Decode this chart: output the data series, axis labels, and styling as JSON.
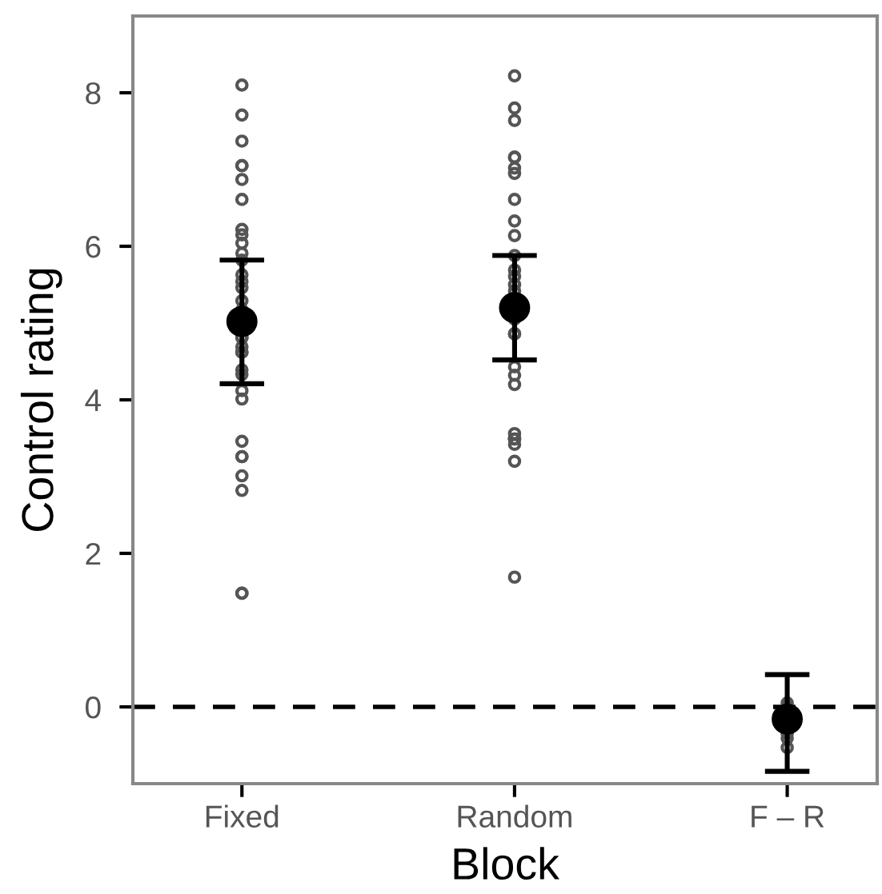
{
  "chart_data": {
    "type": "scatter",
    "xlabel": "Block",
    "ylabel": "Control rating",
    "categories": [
      "Fixed",
      "Random",
      "F – R"
    ],
    "ylim": [
      -1,
      9
    ],
    "yticks": [
      0,
      2,
      4,
      6,
      8
    ],
    "grid": false,
    "legend": false,
    "marker": "circle",
    "ref_lines": [
      {
        "axis": "y",
        "value": 0,
        "line_style": "dashed",
        "color": "#000000"
      }
    ],
    "series": [
      {
        "color": "#555555",
        "x": [
          "Fixed",
          "Fixed",
          "Fixed",
          "Fixed",
          "Fixed",
          "Fixed",
          "Fixed",
          "Fixed",
          "Fixed",
          "Fixed",
          "Fixed",
          "Fixed",
          "Fixed",
          "Fixed",
          "Fixed",
          "Fixed",
          "Fixed",
          "Fixed",
          "Fixed",
          "Fixed",
          "Fixed",
          "Fixed",
          "Fixed",
          "Fixed",
          "Fixed",
          "Fixed",
          "Fixed",
          "Fixed",
          "Fixed",
          "Fixed",
          "Fixed",
          "Fixed",
          "Fixed",
          "Random",
          "Random",
          "Random",
          "Random",
          "Random",
          "Random",
          "Random",
          "Random",
          "Random",
          "Random",
          "Random",
          "Random",
          "Random",
          "Random",
          "Random",
          "Random",
          "Random",
          "Random",
          "Random",
          "Random",
          "Random",
          "Random",
          "Random",
          "Random",
          "Random",
          "Random",
          "Random",
          "Random",
          "F – R",
          "F – R",
          "F – R",
          "F – R",
          "F – R"
        ],
        "values": [
          8.1,
          7.71,
          7.37,
          7.05,
          7.05,
          6.87,
          6.61,
          6.22,
          6.15,
          6.04,
          5.91,
          5.82,
          5.63,
          5.54,
          5.46,
          5.29,
          5.17,
          4.81,
          4.81,
          4.69,
          4.62,
          4.62,
          4.39,
          4.33,
          4.12,
          4.01,
          3.46,
          3.26,
          3.26,
          3.01,
          2.82,
          1.48,
          1.48,
          8.22,
          7.8,
          7.64,
          7.16,
          7.16,
          7.02,
          6.95,
          6.61,
          6.33,
          6.14,
          5.88,
          5.69,
          5.61,
          5.5,
          5.42,
          5.05,
          4.86,
          4.86,
          4.43,
          4.32,
          4.2,
          3.56,
          3.49,
          3.49,
          3.49,
          3.42,
          3.2,
          1.69,
          0.05,
          0.0,
          -0.35,
          -0.41,
          -0.53
        ]
      },
      {
        "color": "#000000",
        "values": [
          5.02,
          5.2,
          -0.16
        ],
        "errors": [
          [
            4.21,
            5.82
          ],
          [
            4.52,
            5.88
          ],
          [
            -0.84,
            0.42
          ]
        ]
      }
    ]
  }
}
